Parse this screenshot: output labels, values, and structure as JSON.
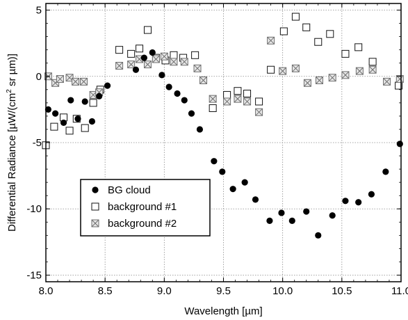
{
  "chart_data": {
    "type": "scatter",
    "xlabel": "Wavelength [µm]",
    "ylabel_parts": [
      "Differential Radiance [µW/(cm",
      "2",
      " sr µm)]"
    ],
    "xlim": [
      8.0,
      11.0
    ],
    "ylim": [
      -15.5,
      5.5
    ],
    "xticks": [
      8.0,
      8.5,
      9.0,
      9.5,
      10.0,
      10.5,
      11.0
    ],
    "xtick_labels": [
      "8.0",
      "8.5",
      "9.0",
      "9.5",
      "10.0",
      "10.5",
      "11.0"
    ],
    "yticks": [
      5,
      0,
      -5,
      -10,
      -15
    ],
    "ytick_labels": [
      "5",
      "0",
      "-5",
      "-10",
      "-15"
    ],
    "grid": true,
    "legend_position": "lower-left",
    "series": [
      {
        "name": "BG cloud",
        "marker": "filled-circle",
        "points": [
          [
            8.02,
            -2.5
          ],
          [
            8.08,
            -2.8
          ],
          [
            8.15,
            -3.5
          ],
          [
            8.21,
            -1.8
          ],
          [
            8.27,
            -3.2
          ],
          [
            8.33,
            -1.9
          ],
          [
            8.39,
            -3.4
          ],
          [
            8.45,
            -1.5
          ],
          [
            8.52,
            -0.7
          ],
          [
            8.76,
            0.5
          ],
          [
            8.83,
            1.4
          ],
          [
            8.9,
            1.8
          ],
          [
            8.98,
            0.1
          ],
          [
            9.04,
            -0.8
          ],
          [
            9.11,
            -1.3
          ],
          [
            9.17,
            -1.8
          ],
          [
            9.23,
            -2.8
          ],
          [
            9.3,
            -4.0
          ],
          [
            9.42,
            -6.4
          ],
          [
            9.49,
            -7.2
          ],
          [
            9.58,
            -8.5
          ],
          [
            9.68,
            -8.0
          ],
          [
            9.77,
            -9.3
          ],
          [
            9.89,
            -10.9
          ],
          [
            9.99,
            -10.3
          ],
          [
            10.08,
            -10.9
          ],
          [
            10.2,
            -10.2
          ],
          [
            10.3,
            -12.0
          ],
          [
            10.42,
            -10.5
          ],
          [
            10.53,
            -9.4
          ],
          [
            10.64,
            -9.5
          ],
          [
            10.75,
            -8.9
          ],
          [
            10.87,
            -7.2
          ],
          [
            10.99,
            -5.1
          ]
        ]
      },
      {
        "name": "background #1",
        "marker": "open-square",
        "points": [
          [
            8.0,
            -5.2
          ],
          [
            8.07,
            -3.8
          ],
          [
            8.15,
            -3.1
          ],
          [
            8.2,
            -4.1
          ],
          [
            8.26,
            -3.2
          ],
          [
            8.33,
            -3.9
          ],
          [
            8.4,
            -2.0
          ],
          [
            8.46,
            -1.0
          ],
          [
            8.62,
            2.0
          ],
          [
            8.72,
            1.7
          ],
          [
            8.79,
            2.1
          ],
          [
            8.86,
            3.5
          ],
          [
            8.93,
            1.4
          ],
          [
            9.01,
            1.2
          ],
          [
            9.08,
            1.6
          ],
          [
            9.16,
            1.4
          ],
          [
            9.26,
            1.6
          ],
          [
            9.41,
            -2.4
          ],
          [
            9.53,
            -1.4
          ],
          [
            9.62,
            -1.1
          ],
          [
            9.7,
            -1.3
          ],
          [
            9.8,
            -1.9
          ],
          [
            9.9,
            0.5
          ],
          [
            10.01,
            3.4
          ],
          [
            10.11,
            4.5
          ],
          [
            10.2,
            3.7
          ],
          [
            10.3,
            2.6
          ],
          [
            10.4,
            3.2
          ],
          [
            10.53,
            1.7
          ],
          [
            10.64,
            2.2
          ],
          [
            10.76,
            1.1
          ],
          [
            10.98,
            -0.7
          ]
        ]
      },
      {
        "name": "background #2",
        "marker": "crossed-square",
        "points": [
          [
            8.02,
            0.0
          ],
          [
            8.08,
            -0.5
          ],
          [
            8.12,
            -0.2
          ],
          [
            8.2,
            -0.1
          ],
          [
            8.25,
            -0.4
          ],
          [
            8.32,
            -0.4
          ],
          [
            8.4,
            -1.4
          ],
          [
            8.45,
            -1.2
          ],
          [
            8.62,
            0.8
          ],
          [
            8.72,
            0.9
          ],
          [
            8.79,
            1.3
          ],
          [
            8.86,
            0.9
          ],
          [
            8.93,
            1.3
          ],
          [
            9.0,
            1.5
          ],
          [
            9.08,
            1.1
          ],
          [
            9.17,
            1.1
          ],
          [
            9.28,
            0.6
          ],
          [
            9.33,
            -0.3
          ],
          [
            9.41,
            -1.7
          ],
          [
            9.53,
            -1.9
          ],
          [
            9.62,
            -1.7
          ],
          [
            9.7,
            -1.9
          ],
          [
            9.8,
            -2.7
          ],
          [
            9.9,
            2.7
          ],
          [
            10.0,
            0.4
          ],
          [
            10.11,
            0.6
          ],
          [
            10.21,
            -0.5
          ],
          [
            10.31,
            -0.3
          ],
          [
            10.42,
            -0.1
          ],
          [
            10.53,
            0.1
          ],
          [
            10.65,
            0.4
          ],
          [
            10.76,
            0.5
          ],
          [
            10.88,
            -0.4
          ],
          [
            10.99,
            -0.2
          ]
        ]
      }
    ]
  }
}
